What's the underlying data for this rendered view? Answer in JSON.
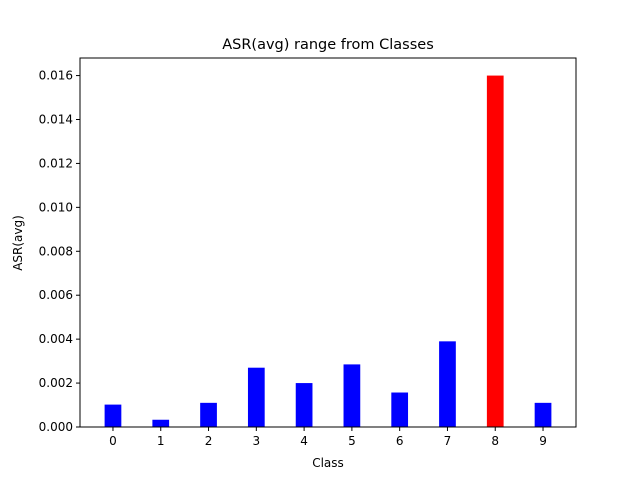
{
  "chart_data": {
    "type": "bar",
    "title": "ASR(avg) range from Classes",
    "xlabel": "Class",
    "ylabel": "ASR(avg)",
    "categories": [
      "0",
      "1",
      "2",
      "3",
      "4",
      "5",
      "6",
      "7",
      "8",
      "9"
    ],
    "values": [
      0.00102,
      0.00033,
      0.0011,
      0.0027,
      0.002,
      0.00285,
      0.00157,
      0.0039,
      0.016,
      0.0011
    ],
    "colors": [
      "#0000ff",
      "#0000ff",
      "#0000ff",
      "#0000ff",
      "#0000ff",
      "#0000ff",
      "#0000ff",
      "#0000ff",
      "#ff0000",
      "#0000ff"
    ],
    "ylim": [
      0,
      0.0168
    ],
    "yticks": [
      0.0,
      0.002,
      0.004,
      0.006,
      0.008,
      0.01,
      0.012,
      0.014,
      0.016
    ],
    "ytick_labels": [
      "0.000",
      "0.002",
      "0.004",
      "0.006",
      "0.008",
      "0.010",
      "0.012",
      "0.014",
      "0.016"
    ],
    "grid": false,
    "legend": "none"
  }
}
